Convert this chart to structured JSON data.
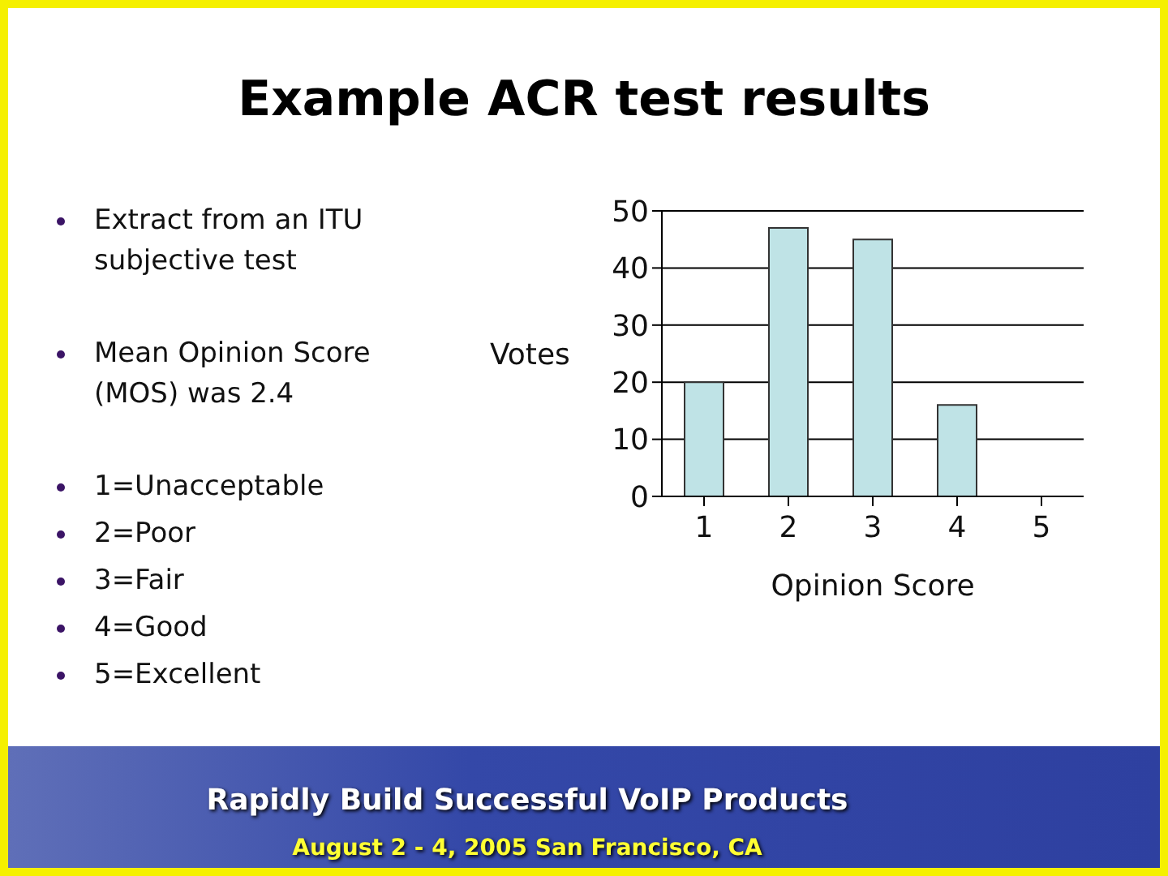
{
  "chart_data": {
    "type": "bar",
    "title": "Example ACR test results",
    "annotations": [
      "Extract from an ITU subjective test",
      "Mean Opinion Score (MOS) was 2.4",
      "1=Unacceptable",
      "2=Poor",
      "3=Fair",
      "4=Good",
      "5=Excellent",
      "Rapidly Build Successful VoIP Products",
      "August 2 - 4, 2005 San Francisco, CA"
    ],
    "categories": [
      "1",
      "2",
      "3",
      "4",
      "5"
    ],
    "values": [
      20,
      47,
      45,
      16,
      0
    ],
    "color": "#bfe3e6",
    "xlabel": "Opinion Score",
    "ylabel": "Votes",
    "ylim": [
      0,
      50
    ],
    "yticks": [
      0,
      10,
      20,
      30,
      40,
      50
    ],
    "grid": "y"
  }
}
